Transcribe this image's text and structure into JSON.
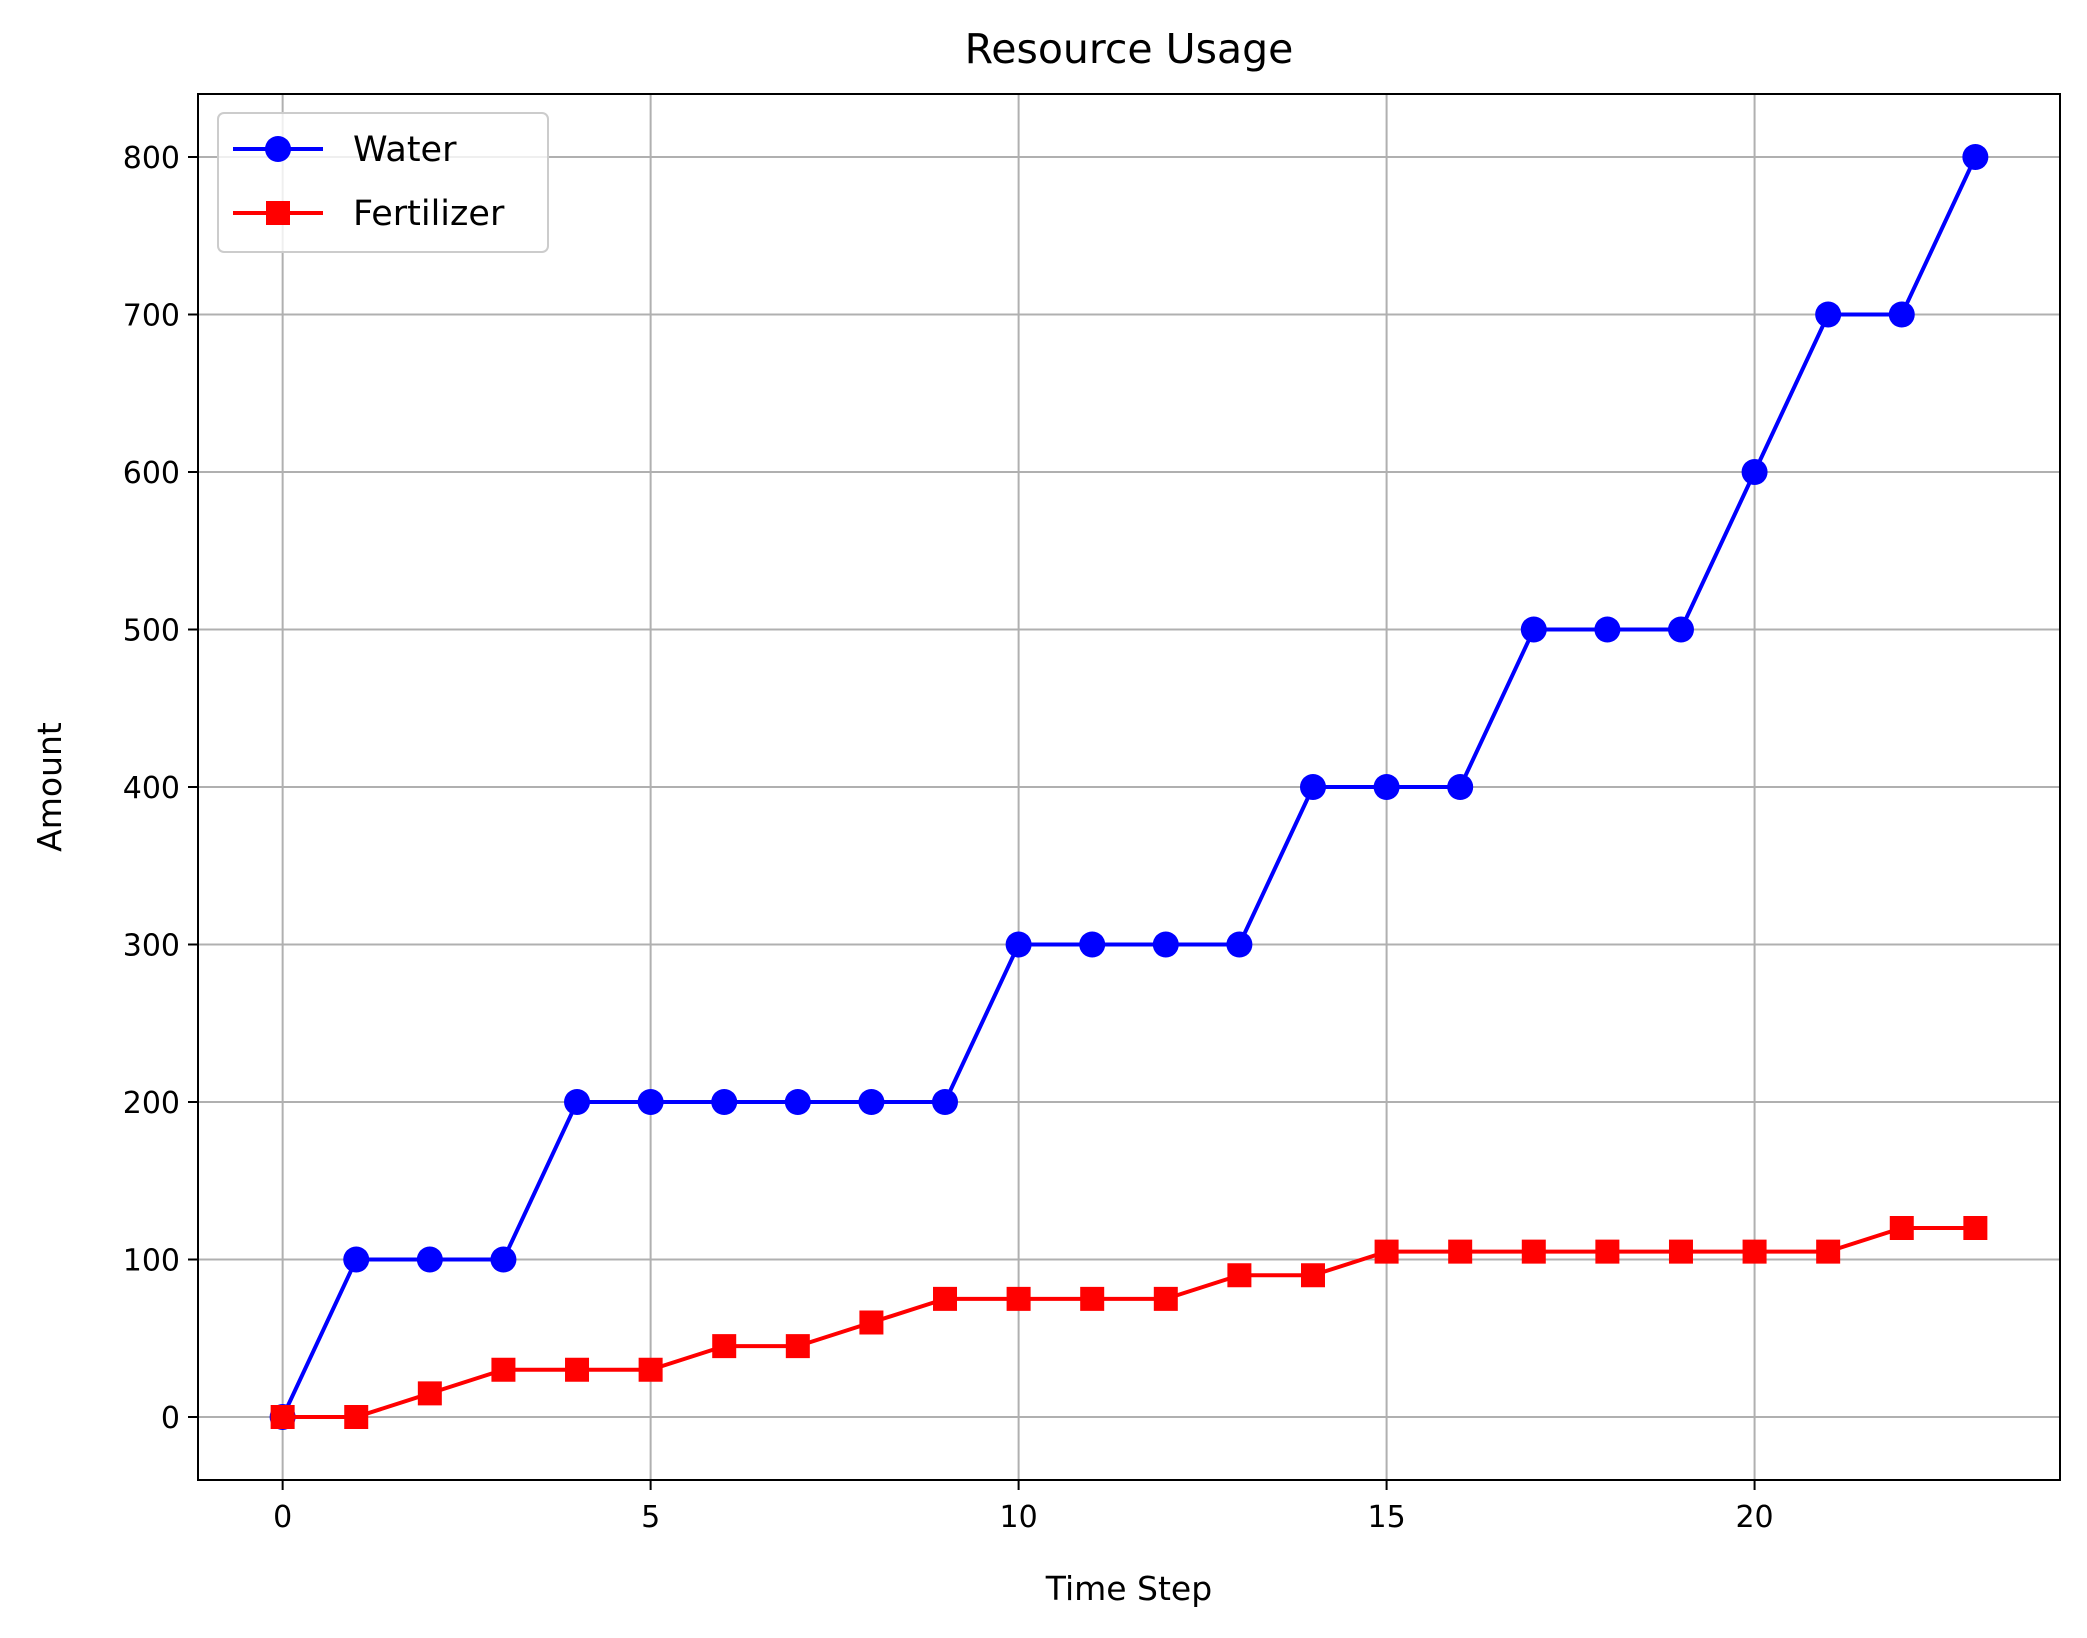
{
  "chart_data": {
    "type": "line",
    "title": "Resource Usage",
    "xlabel": "Time Step",
    "ylabel": "Amount",
    "x": [
      0,
      1,
      2,
      3,
      4,
      5,
      6,
      7,
      8,
      9,
      10,
      11,
      12,
      13,
      14,
      15,
      16,
      17,
      18,
      19,
      20,
      21,
      22,
      23
    ],
    "xlim": [
      -1.15,
      24.15
    ],
    "ylim": [
      -40,
      840
    ],
    "xticks": [
      0,
      5,
      10,
      15,
      20
    ],
    "yticks": [
      0,
      100,
      200,
      300,
      400,
      500,
      600,
      700,
      800
    ],
    "grid": true,
    "legend_position": "upper-left",
    "series": [
      {
        "name": "Water",
        "color": "#0000ff",
        "marker": "circle",
        "values": [
          0,
          100,
          100,
          100,
          200,
          200,
          200,
          200,
          200,
          200,
          300,
          300,
          300,
          300,
          400,
          400,
          400,
          500,
          500,
          500,
          600,
          700,
          700,
          800
        ]
      },
      {
        "name": "Fertilizer",
        "color": "#ff0000",
        "marker": "square",
        "values": [
          0,
          0,
          15,
          30,
          30,
          30,
          45,
          45,
          60,
          75,
          75,
          75,
          75,
          90,
          90,
          105,
          105,
          105,
          105,
          105,
          105,
          105,
          120,
          120
        ]
      }
    ]
  }
}
